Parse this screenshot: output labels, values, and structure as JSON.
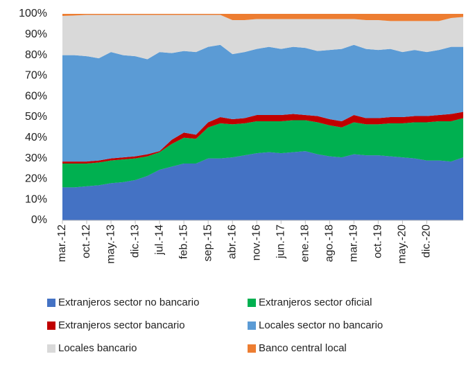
{
  "chart_data": {
    "type": "stacked_area",
    "categories": [
      "mar.-12",
      null,
      "oct.-12",
      null,
      "may.-13",
      null,
      "dic.-13",
      null,
      "jul.-14",
      null,
      "feb.-15",
      null,
      "sep.-15",
      null,
      "abr.-16",
      null,
      "nov.-16",
      null,
      "jun.-17",
      null,
      "ene.-18",
      null,
      "ago.-18",
      null,
      "mar.-19",
      null,
      "oct.-19",
      null,
      "may.-20",
      null,
      "dic.-20",
      null,
      null,
      null
    ],
    "series": [
      {
        "name": "Extranjeros sector no bancario",
        "color": "#4472c4",
        "values": [
          16,
          16,
          16.5,
          17,
          18,
          18.5,
          19.5,
          21.5,
          24.5,
          26,
          27.5,
          27.5,
          30,
          30,
          30.5,
          31.5,
          32.5,
          33,
          32.5,
          33,
          33.5,
          32,
          31,
          30.5,
          32,
          31.5,
          31.5,
          31,
          30.5,
          30,
          29,
          29,
          28.5,
          30.5
        ]
      },
      {
        "name": "Extranjeros sector oficial",
        "color": "#00b050",
        "values": [
          11.5,
          11.5,
          11,
          11,
          11,
          11,
          10.5,
          9.5,
          8.5,
          11,
          12.5,
          12,
          15,
          17,
          16,
          15.5,
          15.5,
          15,
          15.5,
          15.5,
          15,
          15.5,
          15,
          14.5,
          15.5,
          15,
          15,
          16,
          16.5,
          17.5,
          18.5,
          19,
          19.5,
          19
        ]
      },
      {
        "name": "Extranjeros sector bancario",
        "color": "#c00000",
        "values": [
          1,
          1,
          1,
          1,
          1,
          1,
          1,
          1,
          0.5,
          2,
          2.5,
          2,
          2.5,
          3,
          2.5,
          2.5,
          3,
          3,
          3,
          3,
          2.5,
          3,
          3,
          3,
          3.5,
          3,
          3,
          3,
          3,
          3,
          3,
          3,
          3.5,
          3
        ]
      },
      {
        "name": "Locales sector no bancario",
        "color": "#5b9bd5",
        "values": [
          51.5,
          51.5,
          51,
          49.5,
          51.5,
          49.5,
          48.5,
          46,
          48,
          42,
          39.5,
          40,
          36.5,
          35,
          31.5,
          32,
          32,
          33,
          32,
          32.5,
          32.5,
          31.5,
          33.5,
          35,
          34,
          33.5,
          33,
          33,
          31.5,
          32,
          31,
          31.5,
          32.5,
          31.5
        ]
      },
      {
        "name": "Locales bancario",
        "color": "#d9d9d9",
        "values": [
          19,
          19.2,
          20,
          21,
          18,
          19.5,
          20,
          21.5,
          18,
          18.5,
          17.5,
          18,
          15.5,
          14.5,
          16.5,
          15.5,
          14.5,
          13.5,
          14.5,
          13.5,
          14,
          15.5,
          15,
          14.5,
          12.5,
          14,
          14.5,
          13.5,
          15,
          14,
          15,
          14,
          14,
          14.5
        ]
      },
      {
        "name": "Banco central local",
        "color": "#ed7d31",
        "values": [
          1,
          0.8,
          0.5,
          0.5,
          0.5,
          0.5,
          0.5,
          0.5,
          0.5,
          0.5,
          0.5,
          0.5,
          0.5,
          0.5,
          3,
          3,
          2.5,
          2.5,
          2.5,
          2.5,
          2.5,
          2.5,
          2.5,
          2.5,
          2.5,
          3,
          3,
          3.5,
          3.5,
          3.5,
          3.5,
          3.5,
          2,
          1.5
        ]
      }
    ],
    "ylim": [
      0,
      100
    ],
    "yticks": [
      {
        "value": 0,
        "label": "0%"
      },
      {
        "value": 10,
        "label": "10%"
      },
      {
        "value": 20,
        "label": "20%"
      },
      {
        "value": 30,
        "label": "30%"
      },
      {
        "value": 40,
        "label": "40%"
      },
      {
        "value": 50,
        "label": "50%"
      },
      {
        "value": 60,
        "label": "60%"
      },
      {
        "value": 70,
        "label": "70%"
      },
      {
        "value": 80,
        "label": "80%"
      },
      {
        "value": 90,
        "label": "90%"
      },
      {
        "value": 100,
        "label": "100%"
      }
    ],
    "grid": false
  }
}
